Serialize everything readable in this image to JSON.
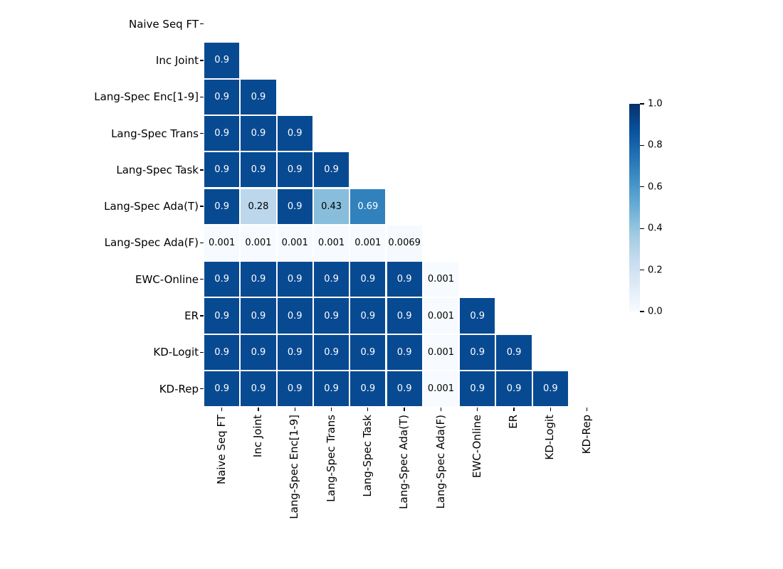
{
  "chart_data": {
    "type": "heatmap",
    "title": "",
    "description": "Lower-triangular pairwise significance heatmap (upper triangle and diagonal masked)",
    "mask": "upper-triangle-and-diagonal",
    "categories": [
      "Naive Seq FT",
      "Inc Joint",
      "Lang-Spec Enc[1-9]",
      "Lang-Spec Trans",
      "Lang-Spec Task",
      "Lang-Spec Ada(T)",
      "Lang-Spec Ada(F)",
      "EWC-Online",
      "ER",
      "KD-Logit",
      "KD-Rep"
    ],
    "matrix": [
      [],
      [
        0.9
      ],
      [
        0.9,
        0.9
      ],
      [
        0.9,
        0.9,
        0.9
      ],
      [
        0.9,
        0.9,
        0.9,
        0.9
      ],
      [
        0.9,
        0.28,
        0.9,
        0.43,
        0.69
      ],
      [
        0.001,
        0.001,
        0.001,
        0.001,
        0.001,
        0.0069
      ],
      [
        0.9,
        0.9,
        0.9,
        0.9,
        0.9,
        0.9,
        0.001
      ],
      [
        0.9,
        0.9,
        0.9,
        0.9,
        0.9,
        0.9,
        0.001,
        0.9
      ],
      [
        0.9,
        0.9,
        0.9,
        0.9,
        0.9,
        0.9,
        0.001,
        0.9,
        0.9
      ],
      [
        0.9,
        0.9,
        0.9,
        0.9,
        0.9,
        0.9,
        0.001,
        0.9,
        0.9,
        0.9
      ]
    ],
    "cell_text": [
      [],
      [
        "0.9"
      ],
      [
        "0.9",
        "0.9"
      ],
      [
        "0.9",
        "0.9",
        "0.9"
      ],
      [
        "0.9",
        "0.9",
        "0.9",
        "0.9"
      ],
      [
        "0.9",
        "0.28",
        "0.9",
        "0.43",
        "0.69"
      ],
      [
        "0.001",
        "0.001",
        "0.001",
        "0.001",
        "0.001",
        "0.0069"
      ],
      [
        "0.9",
        "0.9",
        "0.9",
        "0.9",
        "0.9",
        "0.9",
        "0.001"
      ],
      [
        "0.9",
        "0.9",
        "0.9",
        "0.9",
        "0.9",
        "0.9",
        "0.001",
        "0.9"
      ],
      [
        "0.9",
        "0.9",
        "0.9",
        "0.9",
        "0.9",
        "0.9",
        "0.001",
        "0.9",
        "0.9"
      ],
      [
        "0.9",
        "0.9",
        "0.9",
        "0.9",
        "0.9",
        "0.9",
        "0.001",
        "0.9",
        "0.9",
        "0.9"
      ]
    ],
    "vmin": 0.0,
    "vmax": 1.0,
    "grid": false,
    "colormap": {
      "name": "Blues",
      "anchors": [
        "#f7fbff",
        "#deebf7",
        "#c6dbef",
        "#9ecae1",
        "#6baed6",
        "#4292c6",
        "#2171b5",
        "#08519c",
        "#08306b"
      ]
    },
    "colorbar": {
      "position": "right",
      "min": 0.0,
      "max": 1.0,
      "tick_labels": [
        "1.0",
        "0.8",
        "0.6",
        "0.4",
        "0.2",
        "0.0"
      ]
    },
    "annotation_text_colors": {
      "light_cells": "#000000",
      "dark_cells": "#ffffff"
    }
  }
}
